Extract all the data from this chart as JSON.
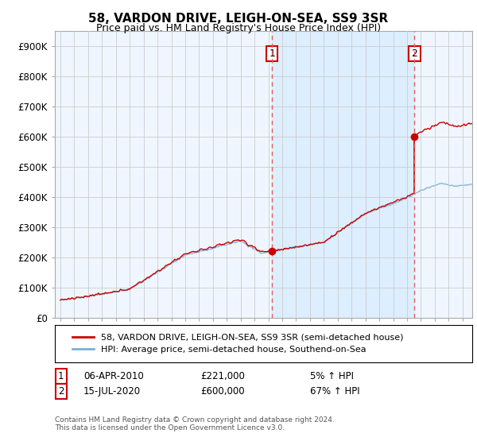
{
  "title": "58, VARDON DRIVE, LEIGH-ON-SEA, SS9 3SR",
  "subtitle": "Price paid vs. HM Land Registry's House Price Index (HPI)",
  "ylim": [
    0,
    950000
  ],
  "yticks": [
    0,
    100000,
    200000,
    300000,
    400000,
    500000,
    600000,
    700000,
    800000,
    900000
  ],
  "ytick_labels": [
    "£0",
    "£100K",
    "£200K",
    "£300K",
    "£400K",
    "£500K",
    "£600K",
    "£700K",
    "£800K",
    "£900K"
  ],
  "t1_year": 2010.27,
  "t1_price": 221000,
  "t1_date_str": "06-APR-2010",
  "t1_pct": "5% ↑ HPI",
  "t2_year": 2020.54,
  "t2_price": 600000,
  "t2_date_str": "15-JUL-2020",
  "t2_pct": "67% ↑ HPI",
  "line_red": "#cc0000",
  "line_blue": "#7ab0d4",
  "vline_color": "#e06060",
  "shade_color": "#ddeeff",
  "bg_color": "#ffffff",
  "plot_bg": "#f0f6ff",
  "grid_color": "#cccccc",
  "legend_label1": "58, VARDON DRIVE, LEIGH-ON-SEA, SS9 3SR (semi-detached house)",
  "legend_label2": "HPI: Average price, semi-detached house, Southend-on-Sea",
  "footer": "Contains HM Land Registry data © Crown copyright and database right 2024.\nThis data is licensed under the Open Government Licence v3.0.",
  "xlim_left": 1994.6,
  "xlim_right": 2024.7
}
